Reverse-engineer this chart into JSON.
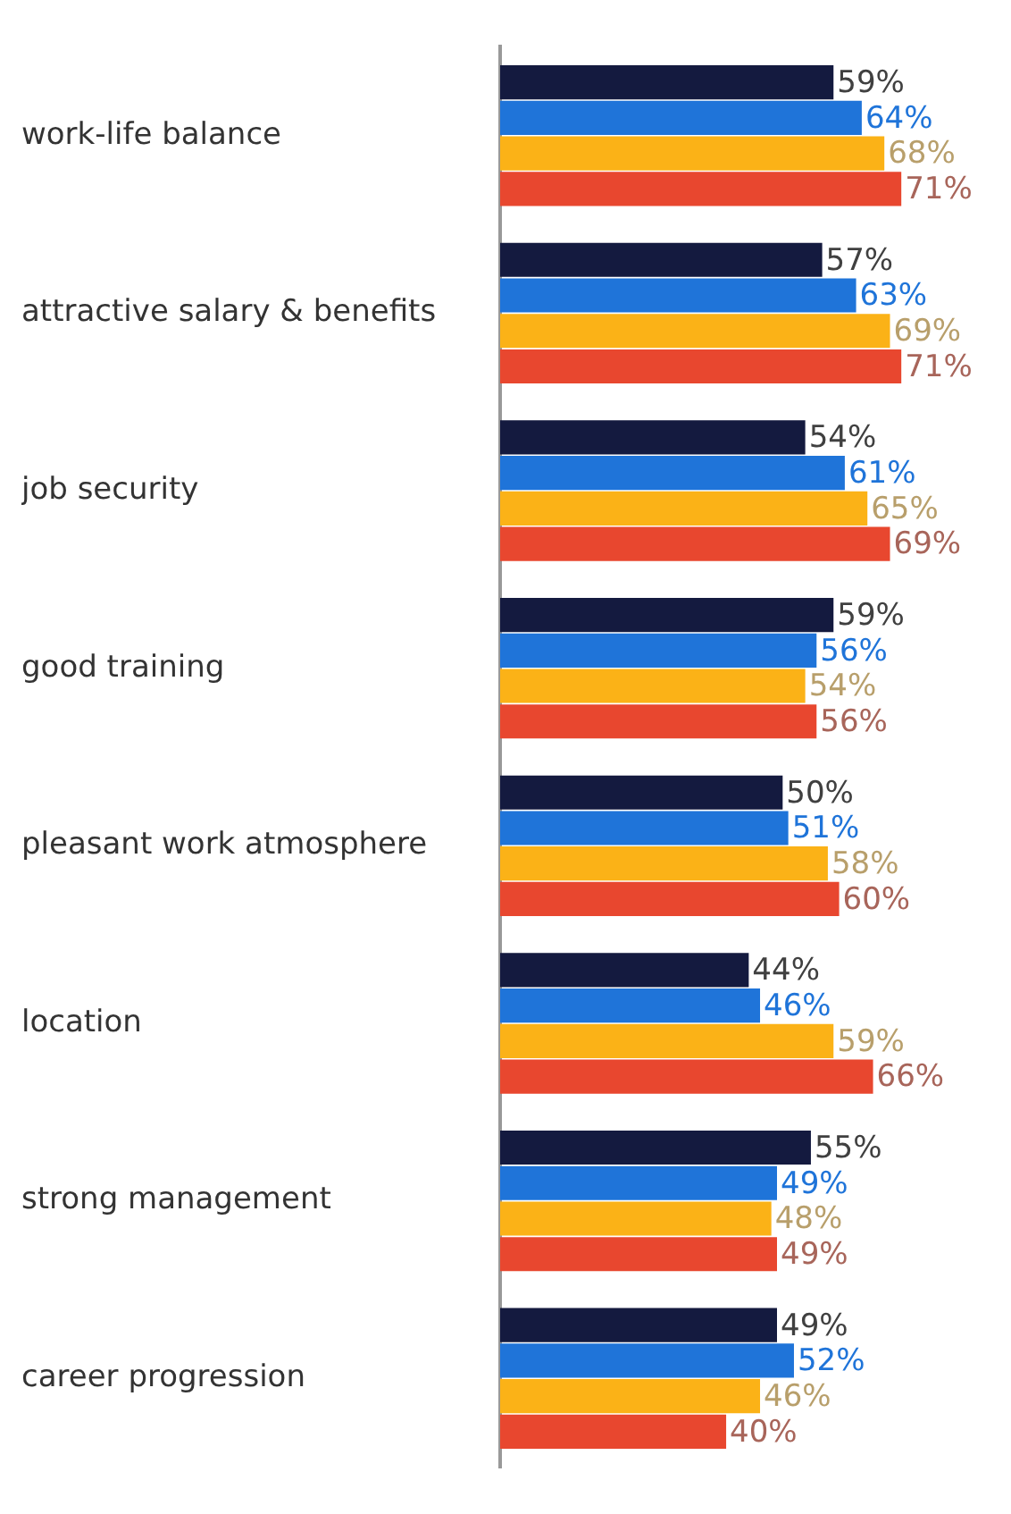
{
  "chart_data": {
    "type": "bar",
    "orientation": "horizontal",
    "legend": false,
    "grid": false,
    "tick_labels": "y",
    "categories": [
      "work-life balance",
      "attractive salary & benefits",
      "job security",
      "good training",
      "pleasant work atmosphere",
      "location",
      "strong management",
      "career progression"
    ],
    "series": [
      {
        "color": "#141a3f",
        "values": [
          59,
          57,
          54,
          59,
          50,
          44,
          55,
          49
        ],
        "value_labels": [
          "59%",
          "57%",
          "54%",
          "59%",
          "50%",
          "44%",
          "55%",
          "49%"
        ]
      },
      {
        "color": "#1f74d9",
        "values": [
          64,
          63,
          61,
          56,
          51,
          46,
          49,
          52
        ],
        "value_labels": [
          "64%",
          "63%",
          "61%",
          "56%",
          "51%",
          "46%",
          "49%",
          "52%"
        ]
      },
      {
        "color": "#fbb217",
        "values": [
          68,
          69,
          65,
          54,
          58,
          59,
          48,
          46
        ],
        "value_labels": [
          "68%",
          "69%",
          "65%",
          "54%",
          "58%",
          "59%",
          "48%",
          "46%"
        ]
      },
      {
        "color": "#e8472f",
        "values": [
          71,
          71,
          69,
          56,
          60,
          66,
          49,
          40
        ],
        "value_labels": [
          "71%",
          "71%",
          "69%",
          "56%",
          "60%",
          "66%",
          "49%",
          "40%"
        ]
      }
    ]
  }
}
